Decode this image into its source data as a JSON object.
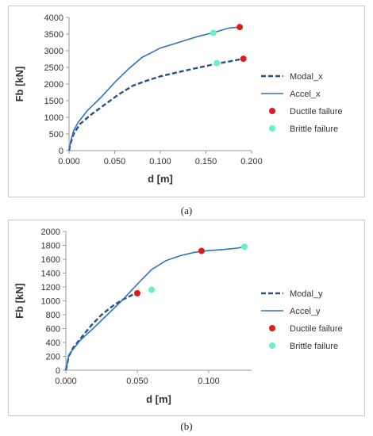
{
  "captions": {
    "a": "(a)",
    "b": "(b)"
  },
  "colors": {
    "line": "#2f6fc0",
    "modal": "#2b4f8c",
    "ductile": "#e31a1c",
    "brittle": "#66f0c8"
  },
  "chart_data": [
    {
      "type": "line",
      "panel": "a",
      "xlabel": "d [m]",
      "ylabel": "Fb [kN]",
      "xlim": [
        0,
        0.2
      ],
      "ylim": [
        0,
        4000
      ],
      "xticks": [
        "0.000",
        "0.050",
        "0.100",
        "0.150",
        "0.200"
      ],
      "yticks": [
        "0",
        "500",
        "1000",
        "1500",
        "2000",
        "2500",
        "3000",
        "3500",
        "4000"
      ],
      "grid": false,
      "legend": "right",
      "series": [
        {
          "name": "Modal_x",
          "style": "dashed",
          "points": [
            [
              0,
              0
            ],
            [
              0.002,
              250
            ],
            [
              0.005,
              500
            ],
            [
              0.012,
              800
            ],
            [
              0.025,
              1100
            ],
            [
              0.04,
              1400
            ],
            [
              0.055,
              1700
            ],
            [
              0.07,
              1950
            ],
            [
              0.085,
              2100
            ],
            [
              0.1,
              2230
            ],
            [
              0.12,
              2360
            ],
            [
              0.14,
              2480
            ],
            [
              0.16,
              2600
            ],
            [
              0.18,
              2700
            ],
            [
              0.191,
              2760
            ]
          ]
        },
        {
          "name": "Accel_x",
          "style": "solid",
          "points": [
            [
              0,
              0
            ],
            [
              0.002,
              300
            ],
            [
              0.005,
              600
            ],
            [
              0.01,
              850
            ],
            [
              0.02,
              1200
            ],
            [
              0.035,
              1600
            ],
            [
              0.05,
              2050
            ],
            [
              0.065,
              2450
            ],
            [
              0.08,
              2800
            ],
            [
              0.1,
              3080
            ],
            [
              0.12,
              3250
            ],
            [
              0.14,
              3420
            ],
            [
              0.16,
              3560
            ],
            [
              0.175,
              3680
            ],
            [
              0.187,
              3710
            ]
          ]
        },
        {
          "name": "Ductile failure",
          "style": "marker",
          "points": [
            [
              0.187,
              3710
            ],
            [
              0.191,
              2760
            ]
          ]
        },
        {
          "name": "Brittle failure",
          "style": "marker",
          "points": [
            [
              0.158,
              3540
            ],
            [
              0.162,
              2630
            ]
          ]
        }
      ]
    },
    {
      "type": "line",
      "panel": "b",
      "xlabel": "d [m]",
      "ylabel": "Fb [kN]",
      "xlim": [
        0,
        0.13
      ],
      "ylim": [
        0,
        2000
      ],
      "xticks": [
        "0.000",
        "0.050",
        "0.100"
      ],
      "ytick_values": [
        0,
        200,
        400,
        600,
        800,
        1000,
        1200,
        1400,
        1600,
        1800,
        2000
      ],
      "yticks": [
        "0",
        "200",
        "400",
        "600",
        "800",
        "1000",
        "1200",
        "1400",
        "1600",
        "1800",
        "2000"
      ],
      "grid": false,
      "legend": "right",
      "series": [
        {
          "name": "Modal_y",
          "style": "dashed",
          "points": [
            [
              0,
              0
            ],
            [
              0.002,
              200
            ],
            [
              0.005,
              320
            ],
            [
              0.01,
              450
            ],
            [
              0.018,
              650
            ],
            [
              0.025,
              800
            ],
            [
              0.033,
              930
            ],
            [
              0.04,
              1020
            ],
            [
              0.046,
              1080
            ],
            [
              0.05,
              1110
            ]
          ]
        },
        {
          "name": "Accel_y",
          "style": "solid",
          "points": [
            [
              0,
              0
            ],
            [
              0.002,
              220
            ],
            [
              0.005,
              300
            ],
            [
              0.01,
              430
            ],
            [
              0.02,
              620
            ],
            [
              0.03,
              820
            ],
            [
              0.04,
              1020
            ],
            [
              0.05,
              1240
            ],
            [
              0.06,
              1450
            ],
            [
              0.07,
              1580
            ],
            [
              0.08,
              1650
            ],
            [
              0.09,
              1700
            ],
            [
              0.1,
              1725
            ],
            [
              0.11,
              1740
            ],
            [
              0.12,
              1760
            ],
            [
              0.125,
              1780
            ]
          ]
        },
        {
          "name": "Ductile failure",
          "style": "marker",
          "points": [
            [
              0.05,
              1110
            ],
            [
              0.095,
              1720
            ]
          ]
        },
        {
          "name": "Brittle failure",
          "style": "marker",
          "points": [
            [
              0.06,
              1160
            ],
            [
              0.125,
              1780
            ]
          ]
        }
      ]
    }
  ]
}
